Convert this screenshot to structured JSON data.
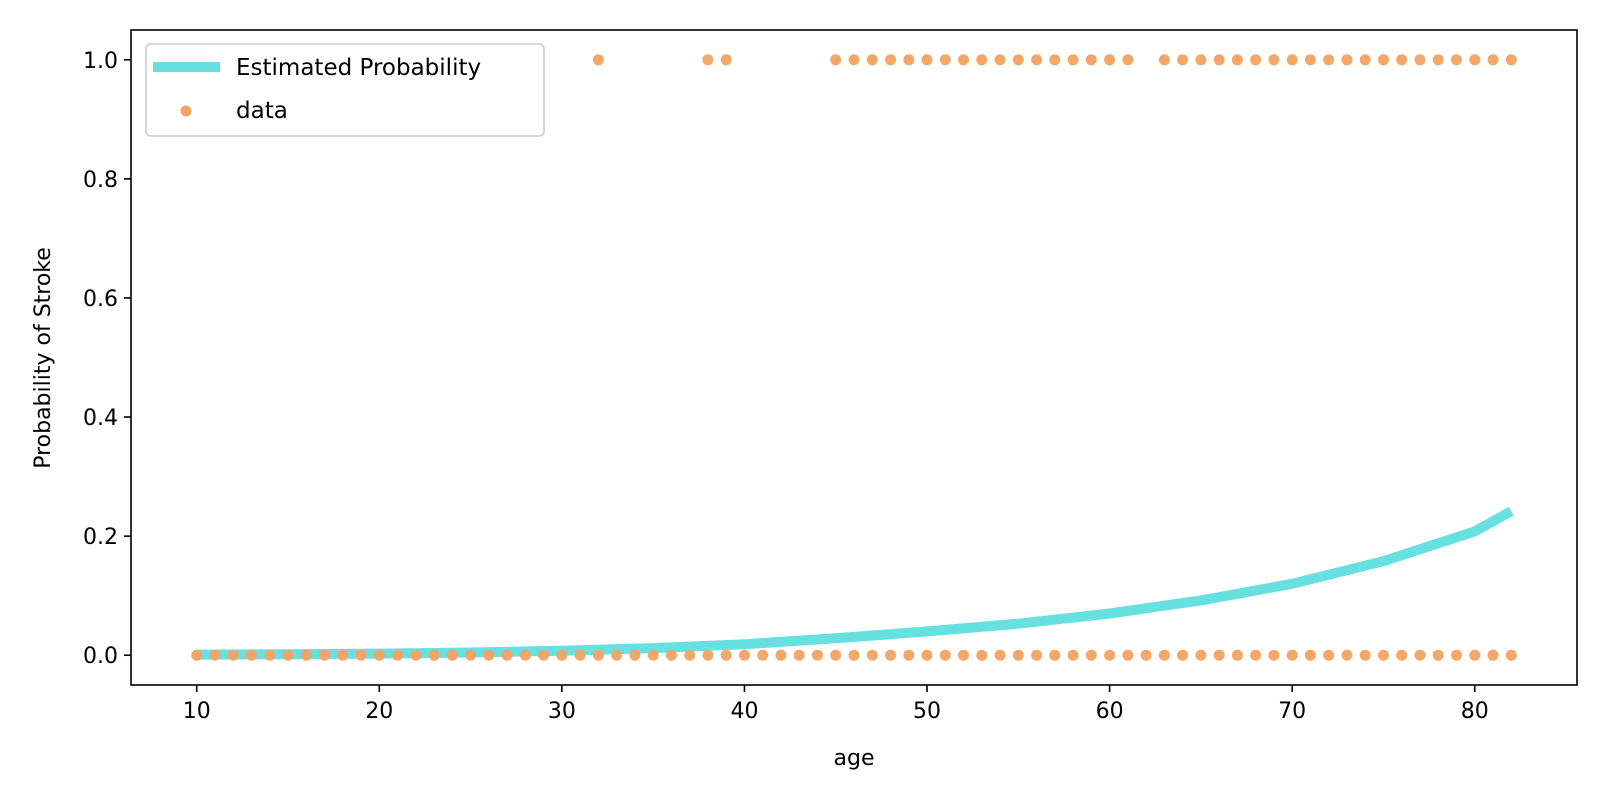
{
  "chart_data": {
    "type": "scatter",
    "title": "",
    "xlabel": "age",
    "ylabel": "Probability of Stroke",
    "xlim": [
      6.4,
      85.6
    ],
    "ylim": [
      -0.05,
      1.05
    ],
    "xticks": [
      10,
      20,
      30,
      40,
      50,
      60,
      70,
      80
    ],
    "xtick_labels": [
      "10",
      "20",
      "30",
      "40",
      "50",
      "60",
      "70",
      "80"
    ],
    "yticks": [
      0.0,
      0.2,
      0.4,
      0.6,
      0.8,
      1.0
    ],
    "ytick_labels": [
      "0.0",
      "0.2",
      "0.4",
      "0.6",
      "0.8",
      "1.0"
    ],
    "grid": false,
    "legend": {
      "placement": "top-left",
      "entries": [
        "Estimated Probability",
        "data"
      ]
    },
    "series": [
      {
        "name": "Estimated Probability",
        "kind": "line",
        "color": "#66e0e0",
        "x": [
          10,
          15,
          20,
          25,
          30,
          35,
          40,
          45,
          50,
          55,
          60,
          65,
          70,
          75,
          80,
          82
        ],
        "y": [
          0.001,
          0.0017,
          0.0028,
          0.0046,
          0.0075,
          0.012,
          0.0185,
          0.0285,
          0.04,
          0.053,
          0.07,
          0.092,
          0.12,
          0.158,
          0.208,
          0.242
        ]
      },
      {
        "name": "data",
        "kind": "scatter",
        "color": "#f4a261",
        "x": [
          10,
          11,
          12,
          13,
          14,
          15,
          16,
          17,
          18,
          19,
          20,
          21,
          22,
          23,
          24,
          25,
          26,
          27,
          28,
          29,
          30,
          31,
          32,
          33,
          34,
          35,
          36,
          37,
          38,
          39,
          40,
          41,
          42,
          43,
          44,
          45,
          46,
          47,
          48,
          49,
          50,
          51,
          52,
          53,
          54,
          55,
          56,
          57,
          58,
          59,
          60,
          61,
          62,
          63,
          64,
          65,
          66,
          67,
          68,
          69,
          70,
          71,
          72,
          73,
          74,
          75,
          76,
          77,
          78,
          79,
          80,
          81,
          82,
          32,
          38,
          39,
          45,
          46,
          47,
          48,
          49,
          50,
          51,
          52,
          53,
          54,
          55,
          56,
          57,
          58,
          59,
          60,
          61,
          63,
          64,
          65,
          66,
          67,
          68,
          69,
          70,
          71,
          72,
          73,
          74,
          75,
          76,
          77,
          78,
          79,
          80,
          81,
          82
        ],
        "y": [
          0,
          0,
          0,
          0,
          0,
          0,
          0,
          0,
          0,
          0,
          0,
          0,
          0,
          0,
          0,
          0,
          0,
          0,
          0,
          0,
          0,
          0,
          0,
          0,
          0,
          0,
          0,
          0,
          0,
          0,
          0,
          0,
          0,
          0,
          0,
          0,
          0,
          0,
          0,
          0,
          0,
          0,
          0,
          0,
          0,
          0,
          0,
          0,
          0,
          0,
          0,
          0,
          0,
          0,
          0,
          0,
          0,
          0,
          0,
          0,
          0,
          0,
          0,
          0,
          0,
          0,
          0,
          0,
          0,
          0,
          0,
          0,
          0,
          1,
          1,
          1,
          1,
          1,
          1,
          1,
          1,
          1,
          1,
          1,
          1,
          1,
          1,
          1,
          1,
          1,
          1,
          1,
          1,
          1,
          1,
          1,
          1,
          1,
          1,
          1,
          1,
          1,
          1,
          1,
          1,
          1,
          1,
          1,
          1,
          1,
          1,
          1,
          1
        ]
      }
    ]
  }
}
